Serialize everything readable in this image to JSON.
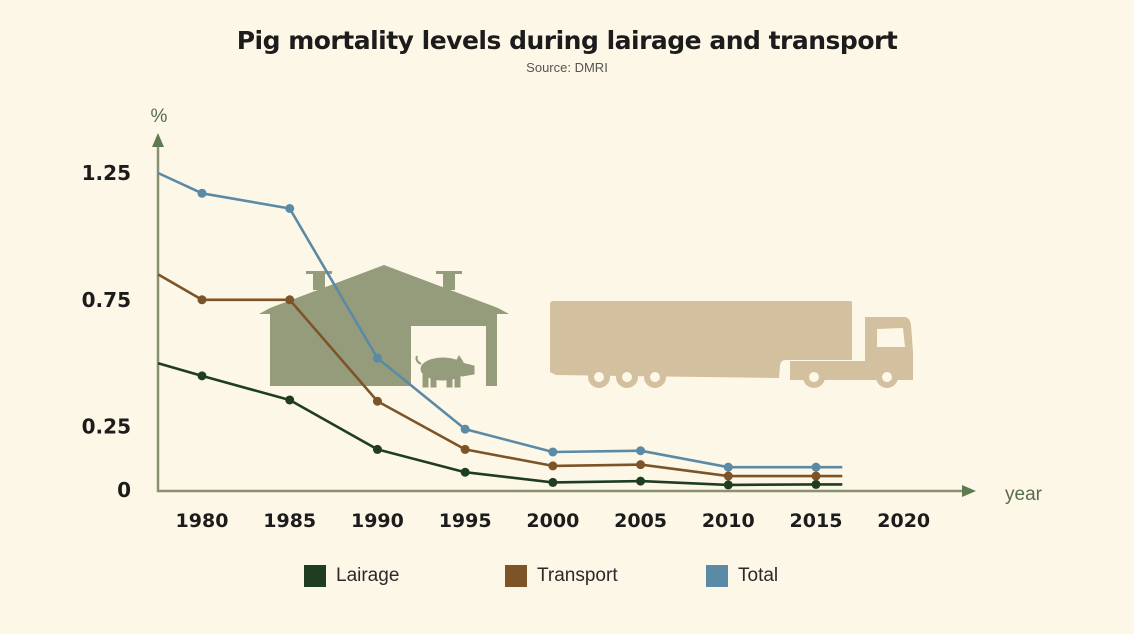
{
  "chart_data": {
    "type": "line",
    "title": "Pig mortality levels during lairage and transport",
    "subtitle": "Source: DMRI",
    "xlabel": "year",
    "ylabel": "%",
    "xlim": [
      1977.5,
      2020
    ],
    "ylim": [
      0,
      1.25
    ],
    "xticks": [
      1980,
      1985,
      1990,
      1995,
      2000,
      2005,
      2010,
      2015,
      2020
    ],
    "yticks": [
      {
        "value": 1.25,
        "label": "1.25"
      },
      {
        "value": 0.75,
        "label": "0.75"
      },
      {
        "value": 0.25,
        "label": "0.25"
      },
      {
        "value": 0,
        "label": "0"
      }
    ],
    "grid": false,
    "legend_position": "bottom",
    "x": [
      1977.5,
      1980,
      1985,
      1990,
      1995,
      2000,
      2005,
      2010,
      2015,
      2016.5
    ],
    "marker_x": [
      1980,
      1985,
      1990,
      1995,
      2000,
      2005,
      2010,
      2015
    ],
    "series": [
      {
        "name": "Lairage",
        "color": "#1f3d22",
        "values": [
          0.5,
          0.45,
          0.355,
          0.16,
          0.07,
          0.03,
          0.035,
          0.02,
          0.022,
          0.022
        ]
      },
      {
        "name": "Transport",
        "color": "#7d5428",
        "values": [
          0.85,
          0.75,
          0.75,
          0.35,
          0.16,
          0.095,
          0.1,
          0.055,
          0.055,
          0.055
        ]
      },
      {
        "name": "Total",
        "color": "#5a8aa6",
        "values": [
          1.25,
          1.17,
          1.11,
          0.52,
          0.24,
          0.15,
          0.155,
          0.09,
          0.09,
          0.09
        ]
      }
    ]
  },
  "illustrations": {
    "barn_color": "#959c7b",
    "truck_color": "#d2c09e",
    "axis_color": "#6f7d5e",
    "background": "#fdf7e7"
  }
}
